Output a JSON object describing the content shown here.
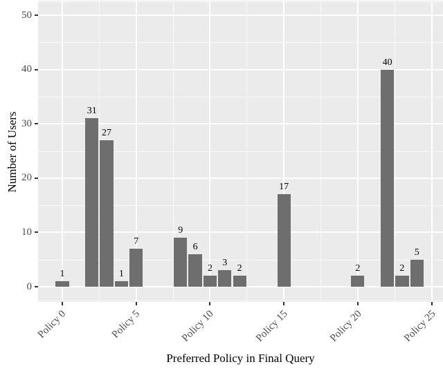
{
  "chart_data": {
    "type": "bar",
    "title": "",
    "xlabel": "Preferred Policy in Final Query",
    "ylabel": "Number of Users",
    "x_tick_positions": [
      0,
      5,
      10,
      15,
      20,
      25
    ],
    "x_tick_labels": [
      "Policy 0",
      "Policy 5",
      "Policy 10",
      "Policy 15",
      "Policy 20",
      "Policy 25"
    ],
    "x_minor_positions": [
      2.5,
      7.5,
      12.5,
      17.5,
      22.5
    ],
    "y_ticks": [
      0,
      10,
      20,
      30,
      40,
      50
    ],
    "y_minor_positions": [
      -2.5,
      5,
      15,
      25,
      35,
      45,
      52.5
    ],
    "ylim": [
      -2.8,
      52.6
    ],
    "xlim": [
      -1.65,
      25.75
    ],
    "bar_width_units": 0.9,
    "grid": true,
    "legend": null,
    "bars": [
      {
        "x": 0,
        "value": 1
      },
      {
        "x": 2,
        "value": 31
      },
      {
        "x": 3,
        "value": 27
      },
      {
        "x": 4,
        "value": 1
      },
      {
        "x": 5,
        "value": 7
      },
      {
        "x": 8,
        "value": 9
      },
      {
        "x": 9,
        "value": 6
      },
      {
        "x": 10,
        "value": 2
      },
      {
        "x": 11,
        "value": 3
      },
      {
        "x": 12,
        "value": 2
      },
      {
        "x": 15,
        "value": 17
      },
      {
        "x": 20,
        "value": 2
      },
      {
        "x": 22,
        "value": 40
      },
      {
        "x": 23,
        "value": 2
      },
      {
        "x": 24,
        "value": 5
      }
    ],
    "colors": {
      "bar": "#6e6e6e",
      "panel_background": "#ebebeb",
      "grid_major": "#ffffff",
      "grid_minor": "#ffffff",
      "tick_mark": "#333333",
      "axis_text": "#4d4d4d",
      "title_text": "#000000"
    }
  }
}
